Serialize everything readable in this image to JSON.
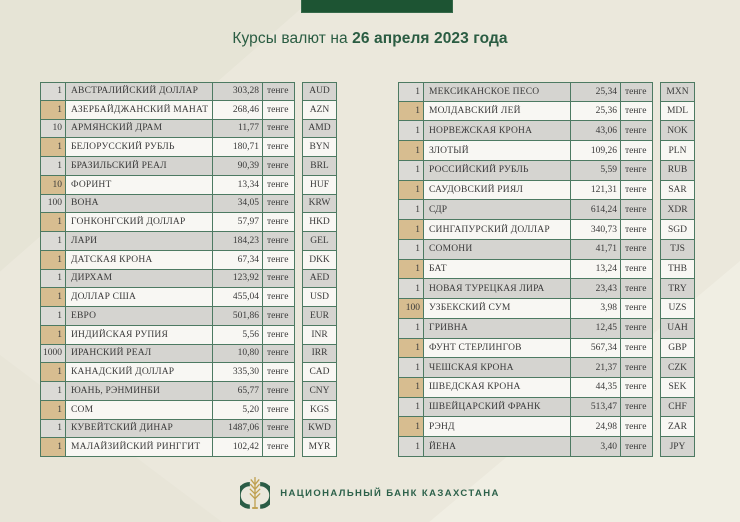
{
  "page": {
    "title_prefix": "Курсы валют на ",
    "title_date": "26 апреля 2023 года"
  },
  "unit_label": "тенге",
  "left_table": {
    "rows": [
      {
        "qty": "1",
        "name": "АВСТРАЛИЙСКИЙ ДОЛЛАР",
        "rate": "303,28",
        "code": "AUD"
      },
      {
        "qty": "1",
        "name": "АЗЕРБАЙДЖАНСКИЙ МАНАТ",
        "rate": "268,46",
        "code": "AZN"
      },
      {
        "qty": "10",
        "name": "АРМЯНСКИЙ ДРАМ",
        "rate": "11,77",
        "code": "AMD"
      },
      {
        "qty": "1",
        "name": "БЕЛОРУССКИЙ РУБЛЬ",
        "rate": "180,71",
        "code": "BYN"
      },
      {
        "qty": "1",
        "name": "БРАЗИЛЬСКИЙ РЕАЛ",
        "rate": "90,39",
        "code": "BRL"
      },
      {
        "qty": "10",
        "name": "ФОРИНТ",
        "rate": "13,34",
        "code": "HUF"
      },
      {
        "qty": "100",
        "name": "ВОНА",
        "rate": "34,05",
        "code": "KRW"
      },
      {
        "qty": "1",
        "name": "ГОНКОНГСКИЙ ДОЛЛАР",
        "rate": "57,97",
        "code": "HKD"
      },
      {
        "qty": "1",
        "name": "ЛАРИ",
        "rate": "184,23",
        "code": "GEL"
      },
      {
        "qty": "1",
        "name": "ДАТСКАЯ КРОНА",
        "rate": "67,34",
        "code": "DKK"
      },
      {
        "qty": "1",
        "name": "ДИРХАМ",
        "rate": "123,92",
        "code": "AED"
      },
      {
        "qty": "1",
        "name": "ДОЛЛАР США",
        "rate": "455,04",
        "code": "USD"
      },
      {
        "qty": "1",
        "name": "ЕВРО",
        "rate": "501,86",
        "code": "EUR"
      },
      {
        "qty": "1",
        "name": "ИНДИЙСКАЯ РУПИЯ",
        "rate": "5,56",
        "code": "INR"
      },
      {
        "qty": "1000",
        "name": "ИРАНСКИЙ РЕАЛ",
        "rate": "10,80",
        "code": "IRR"
      },
      {
        "qty": "1",
        "name": "КАНАДСКИЙ ДОЛЛАР",
        "rate": "335,30",
        "code": "CAD"
      },
      {
        "qty": "1",
        "name": "ЮАНЬ, РЭНМИНБИ",
        "rate": "65,77",
        "code": "CNY"
      },
      {
        "qty": "1",
        "name": "СОМ",
        "rate": "5,20",
        "code": "KGS"
      },
      {
        "qty": "1",
        "name": "КУВЕЙТСКИЙ ДИНАР",
        "rate": "1487,06",
        "code": "KWD"
      },
      {
        "qty": "1",
        "name": "МАЛАЙЗИЙСКИЙ РИНГГИТ",
        "rate": "102,42",
        "code": "MYR"
      }
    ]
  },
  "right_table": {
    "rows": [
      {
        "qty": "1",
        "name": "МЕКСИКАНСКОЕ ПЕСО",
        "rate": "25,34",
        "code": "MXN"
      },
      {
        "qty": "1",
        "name": "МОЛДАВСКИЙ ЛЕЙ",
        "rate": "25,36",
        "code": "MDL"
      },
      {
        "qty": "1",
        "name": "НОРВЕЖСКАЯ КРОНА",
        "rate": "43,06",
        "code": "NOK"
      },
      {
        "qty": "1",
        "name": "ЗЛОТЫЙ",
        "rate": "109,26",
        "code": "PLN"
      },
      {
        "qty": "1",
        "name": "РОССИЙСКИЙ РУБЛЬ",
        "rate": "5,59",
        "code": "RUB"
      },
      {
        "qty": "1",
        "name": "САУДОВСКИЙ РИЯЛ",
        "rate": "121,31",
        "code": "SAR"
      },
      {
        "qty": "1",
        "name": "СДР",
        "rate": "614,24",
        "code": "XDR"
      },
      {
        "qty": "1",
        "name": "СИНГАПУРСКИЙ ДОЛЛАР",
        "rate": "340,73",
        "code": "SGD"
      },
      {
        "qty": "1",
        "name": "СОМОНИ",
        "rate": "41,71",
        "code": "TJS"
      },
      {
        "qty": "1",
        "name": "БАТ",
        "rate": "13,24",
        "code": "THB"
      },
      {
        "qty": "1",
        "name": "НОВАЯ ТУРЕЦКАЯ ЛИРА",
        "rate": "23,43",
        "code": "TRY"
      },
      {
        "qty": "100",
        "name": "УЗБЕКСКИЙ СУМ",
        "rate": "3,98",
        "code": "UZS"
      },
      {
        "qty": "1",
        "name": "ГРИВНА",
        "rate": "12,45",
        "code": "UAH"
      },
      {
        "qty": "1",
        "name": "ФУНТ СТЕРЛИНГОВ",
        "rate": "567,34",
        "code": "GBP"
      },
      {
        "qty": "1",
        "name": "ЧЕШСКАЯ КРОНА",
        "rate": "21,37",
        "code": "CZK"
      },
      {
        "qty": "1",
        "name": "ШВЕДСКАЯ КРОНА",
        "rate": "44,35",
        "code": "SEK"
      },
      {
        "qty": "1",
        "name": "ШВЕЙЦАРСКИЙ ФРАНК",
        "rate": "513,47",
        "code": "CHF"
      },
      {
        "qty": "1",
        "name": "РЭНД",
        "rate": "24,98",
        "code": "ZAR"
      },
      {
        "qty": "1",
        "name": "ЙЕНА",
        "rate": "3,40",
        "code": "JPY"
      }
    ]
  },
  "footer": {
    "bank_name": "НАЦИОНАЛЬНЫЙ БАНК КАЗАХСТАНА"
  },
  "colors": {
    "background": "#ebe8dc",
    "banner_green": "#1d5433",
    "title_green": "#2a5c42",
    "border_green": "#4d7a62",
    "row_gray": "#d5d4d0",
    "row_white": "#f8f7f3",
    "qty_tan": "#d7bd90",
    "footer_green": "#2c614a",
    "gold": "#bfa04f"
  }
}
